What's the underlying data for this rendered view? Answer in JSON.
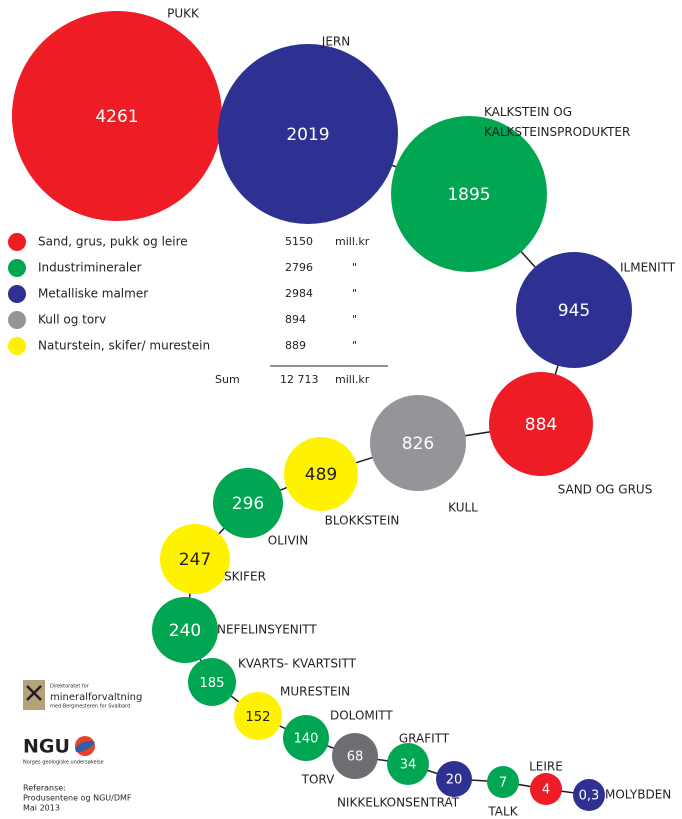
{
  "chart_data": {
    "type": "bubble-chain",
    "categories": [
      "PUKK",
      "JERN",
      "KALKSTEIN OG\nKALKSTEINSPRODUKTER",
      "ILMENITT",
      "SAND OG GRUS",
      "KULL",
      "BLOKKSTEIN",
      "OLIVIN",
      "SKIFER",
      "NEFELINSYENITT",
      "KVARTS- KVARTSITT",
      "MURESTEIN",
      "DOLOMITT",
      "TORV",
      "GRAFITT",
      "NIKKELKONSENTRAT",
      "TALK",
      "LEIRE",
      "MOLYBDEN"
    ],
    "values": [
      4261,
      2019,
      1895,
      945,
      884,
      826,
      489,
      296,
      247,
      240,
      185,
      152,
      140,
      68,
      34,
      20,
      7,
      4,
      0.3
    ],
    "value_labels": [
      "4261",
      "2019",
      "1895",
      "945",
      "884",
      "826",
      "489",
      "296",
      "247",
      "240",
      "185",
      "152",
      "140",
      "68",
      "34",
      "20",
      "7",
      "4",
      "0,3"
    ],
    "colors": [
      "#ee1c25",
      "#2e3192",
      "#00a651",
      "#2e3192",
      "#ee1c25",
      "#939598",
      "#fff200",
      "#00a651",
      "#fff200",
      "#00a651",
      "#00a651",
      "#fff200",
      "#00a651",
      "#6d6e71",
      "#00a651",
      "#2e3192",
      "#00a651",
      "#ee1c25",
      "#2e3192"
    ]
  },
  "legend": {
    "items": [
      {
        "name": "Sand, grus, pukk og leire",
        "color": "#ee1c25",
        "value": 5150,
        "unit": "mill.kr"
      },
      {
        "name": "Industrimineraler",
        "color": "#00a651",
        "value": 2796,
        "unit": "\""
      },
      {
        "name": "Metalliske malmer",
        "color": "#2e3192",
        "value": 2984,
        "unit": "\""
      },
      {
        "name": "Kull og torv",
        "color": "#939598",
        "value": 894,
        "unit": "\""
      },
      {
        "name": "Naturstein, skifer/ murestein",
        "color": "#fff200",
        "value": 889,
        "unit": "\""
      }
    ],
    "sum": {
      "label": "Sum",
      "value": {
        "value": 12713,
        "label": "12 713"
      },
      "unit": "mill.kr"
    }
  },
  "footer": {
    "dmf_small": "Direktoratet for",
    "dmf_name": "mineralforvaltning",
    "dmf_sub": "med Bergmesteren for Svalbard",
    "ngu": "NGU",
    "ngu_sub": "Norges geologiske undersøkelse",
    "ref": [
      "Referanse:",
      "Produsentene og NGU/DMF",
      "Mai 2013"
    ]
  }
}
